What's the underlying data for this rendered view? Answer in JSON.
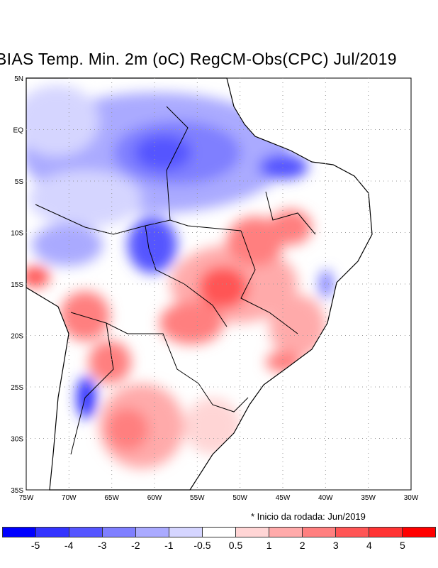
{
  "title": "BIAS Temp. Min. 2m (oC) RegCM-Obs(CPC) Jul/2019",
  "footnote": "* Inicio da rodada: Jun/2019",
  "axes": {
    "lon_labels": [
      "75W",
      "70W",
      "65W",
      "60W",
      "55W",
      "50W",
      "45W",
      "40W",
      "35W",
      "30W"
    ],
    "lat_labels": [
      "5N",
      "EQ",
      "5S",
      "10S",
      "15S",
      "20S",
      "25S",
      "30S",
      "35S"
    ]
  },
  "colorbar": {
    "colors": [
      "#0000ff",
      "#3333ff",
      "#5555ff",
      "#7f7fff",
      "#aaaaff",
      "#d5d5ff",
      "#ffffff",
      "#ffd5d5",
      "#ffaaaa",
      "#ff7f7f",
      "#ff5555",
      "#ff3333",
      "#ff0000"
    ],
    "labels": [
      "-5",
      "-4",
      "-3",
      "-2",
      "-1",
      "-0.5",
      "0.5",
      "1",
      "2",
      "3",
      "4",
      "5"
    ]
  }
}
